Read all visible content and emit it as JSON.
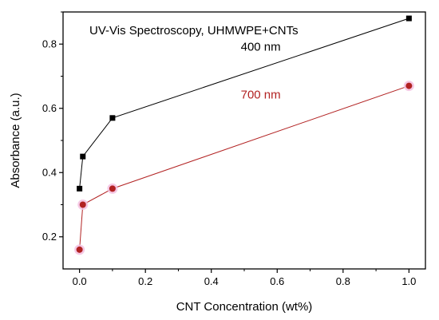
{
  "chart_data": {
    "type": "line",
    "title": "UV-Vis Spectroscopy, UHMWPE+CNTs",
    "xlabel": "CNT Concentration (wt%)",
    "ylabel": "Absorbance (a.u.)",
    "xlim": [
      -0.05,
      1.05
    ],
    "ylim": [
      0.1,
      0.9
    ],
    "xticks": [
      0.0,
      0.2,
      0.4,
      0.6,
      0.8,
      1.0
    ],
    "xtick_labels": [
      "0.0",
      "0.2",
      "0.4",
      "0.6",
      "0.8",
      "1.0"
    ],
    "yticks": [
      0.2,
      0.4,
      0.6,
      0.8
    ],
    "ytick_labels": [
      "0.2",
      "0.4",
      "0.6",
      "0.8"
    ],
    "grid": false,
    "series": [
      {
        "name": "400 nm",
        "color": "#000000",
        "marker": "square",
        "x": [
          0.0,
          0.01,
          0.1,
          1.0
        ],
        "y": [
          0.35,
          0.45,
          0.57,
          0.88
        ]
      },
      {
        "name": "700 nm",
        "color": "#b22222",
        "marker": "circle",
        "x": [
          0.0,
          0.01,
          0.1,
          1.0
        ],
        "y": [
          0.16,
          0.3,
          0.35,
          0.67
        ]
      }
    ],
    "annotations": [
      {
        "text": "400 nm",
        "color": "#000000",
        "x": 0.55,
        "y": 0.78
      },
      {
        "text": "700 nm",
        "color": "#b22222",
        "x": 0.55,
        "y": 0.63
      }
    ]
  }
}
